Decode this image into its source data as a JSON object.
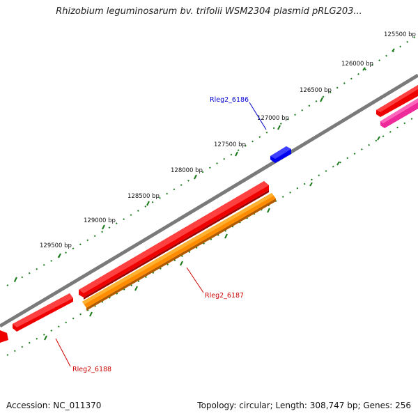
{
  "title": "Rhizobium leguminosarum bv. trifolii WSM2304 plasmid pRLG203...",
  "footer": {
    "accession": "Accession: NC_011370",
    "summary": "Topology: circular; Length: 308,747 bp; Genes: 256"
  },
  "ticks": [
    "125500 bp",
    "126000 bp",
    "126500 bp",
    "127000 bp",
    "127500 bp",
    "128000 bp",
    "128500 bp",
    "129000 bp",
    "129500 bp"
  ],
  "genes": [
    {
      "name": "Rleg2_6186",
      "color": "#0000cc"
    },
    {
      "name": "Rleg2_6187",
      "color": "#cc0000"
    },
    {
      "name": "Rleg2_6188",
      "color": "#cc0000"
    }
  ],
  "colors": {
    "backbone": "#7a7a7a",
    "tick": "#1a7a1a",
    "tick_label": "#111111",
    "gene_red": "#ee0000",
    "gene_orange": "#ff8c00",
    "gene_magenta": "#ee2a9a",
    "gene_blue": "#0000ee"
  }
}
